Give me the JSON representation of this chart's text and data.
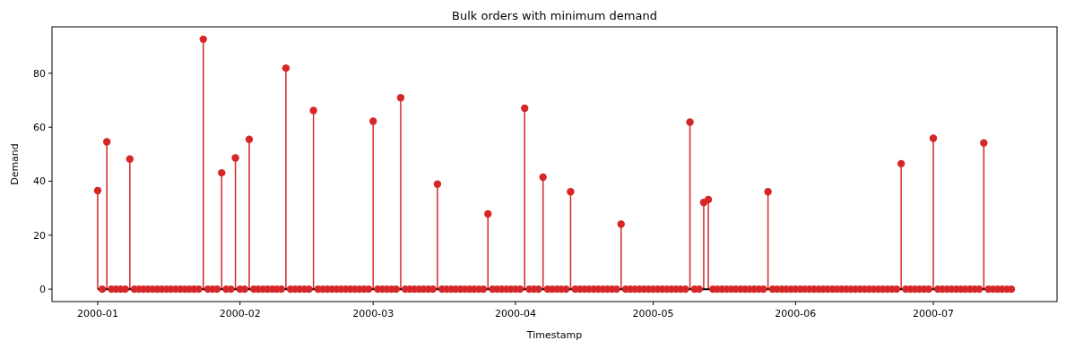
{
  "chart_data": {
    "type": "lollipop",
    "title": "Bulk orders with minimum demand",
    "xlabel": "Timestamp",
    "ylabel": "Demand",
    "x": [
      "2000-01-01",
      "2000-01-02",
      "2000-01-03",
      "2000-01-04",
      "2000-01-05",
      "2000-01-06",
      "2000-01-07",
      "2000-01-08",
      "2000-01-09",
      "2000-01-10",
      "2000-01-11",
      "2000-01-12",
      "2000-01-13",
      "2000-01-14",
      "2000-01-15",
      "2000-01-16",
      "2000-01-17",
      "2000-01-18",
      "2000-01-19",
      "2000-01-20",
      "2000-01-21",
      "2000-01-22",
      "2000-01-23",
      "2000-01-24",
      "2000-01-25",
      "2000-01-26",
      "2000-01-27",
      "2000-01-28",
      "2000-01-29",
      "2000-01-30",
      "2000-01-31",
      "2000-02-01",
      "2000-02-02",
      "2000-02-03",
      "2000-02-04",
      "2000-02-05",
      "2000-02-06",
      "2000-02-07",
      "2000-02-08",
      "2000-02-09",
      "2000-02-10",
      "2000-02-11",
      "2000-02-12",
      "2000-02-13",
      "2000-02-14",
      "2000-02-15",
      "2000-02-16",
      "2000-02-17",
      "2000-02-18",
      "2000-02-19",
      "2000-02-20",
      "2000-02-21",
      "2000-02-22",
      "2000-02-23",
      "2000-02-24",
      "2000-02-25",
      "2000-02-26",
      "2000-02-27",
      "2000-02-28",
      "2000-02-29",
      "2000-03-01",
      "2000-03-02",
      "2000-03-03",
      "2000-03-04",
      "2000-03-05",
      "2000-03-06",
      "2000-03-07",
      "2000-03-08",
      "2000-03-09",
      "2000-03-10",
      "2000-03-11",
      "2000-03-12",
      "2000-03-13",
      "2000-03-14",
      "2000-03-15",
      "2000-03-16",
      "2000-03-17",
      "2000-03-18",
      "2000-03-19",
      "2000-03-20",
      "2000-03-21",
      "2000-03-22",
      "2000-03-23",
      "2000-03-24",
      "2000-03-25",
      "2000-03-26",
      "2000-03-27",
      "2000-03-28",
      "2000-03-29",
      "2000-03-30",
      "2000-03-31",
      "2000-04-01",
      "2000-04-02",
      "2000-04-03",
      "2000-04-04",
      "2000-04-05",
      "2000-04-06",
      "2000-04-07",
      "2000-04-08",
      "2000-04-09",
      "2000-04-10",
      "2000-04-11",
      "2000-04-12",
      "2000-04-13",
      "2000-04-14",
      "2000-04-15",
      "2000-04-16",
      "2000-04-17",
      "2000-04-18",
      "2000-04-19",
      "2000-04-20",
      "2000-04-21",
      "2000-04-22",
      "2000-04-23",
      "2000-04-24",
      "2000-04-25",
      "2000-04-26",
      "2000-04-27",
      "2000-04-28",
      "2000-04-29",
      "2000-04-30",
      "2000-05-01",
      "2000-05-02",
      "2000-05-03",
      "2000-05-04",
      "2000-05-05",
      "2000-05-06",
      "2000-05-07",
      "2000-05-08",
      "2000-05-09",
      "2000-05-10",
      "2000-05-11",
      "2000-05-12",
      "2000-05-13",
      "2000-05-14",
      "2000-05-15",
      "2000-05-16",
      "2000-05-17",
      "2000-05-18",
      "2000-05-19",
      "2000-05-20",
      "2000-05-21",
      "2000-05-22",
      "2000-05-23",
      "2000-05-24",
      "2000-05-25",
      "2000-05-26",
      "2000-05-27",
      "2000-05-28",
      "2000-05-29",
      "2000-05-30",
      "2000-05-31",
      "2000-06-01",
      "2000-06-02",
      "2000-06-03",
      "2000-06-04",
      "2000-06-05",
      "2000-06-06",
      "2000-06-07",
      "2000-06-08",
      "2000-06-09",
      "2000-06-10",
      "2000-06-11",
      "2000-06-12",
      "2000-06-13",
      "2000-06-14",
      "2000-06-15",
      "2000-06-16",
      "2000-06-17",
      "2000-06-18",
      "2000-06-19",
      "2000-06-20",
      "2000-06-21",
      "2000-06-22",
      "2000-06-23",
      "2000-06-24",
      "2000-06-25",
      "2000-06-26",
      "2000-06-27",
      "2000-06-28",
      "2000-06-29",
      "2000-06-30",
      "2000-07-01",
      "2000-07-02",
      "2000-07-03",
      "2000-07-04",
      "2000-07-05",
      "2000-07-06",
      "2000-07-07",
      "2000-07-08",
      "2000-07-09",
      "2000-07-10",
      "2000-07-11",
      "2000-07-12",
      "2000-07-13",
      "2000-07-14",
      "2000-07-15",
      "2000-07-16",
      "2000-07-17",
      "2000-07-18"
    ],
    "series": [
      {
        "color": "#d62728",
        "values": [
          36.5,
          0,
          54.6,
          0,
          0,
          0,
          0,
          48.2,
          0,
          0,
          0,
          0,
          0,
          0,
          0,
          0,
          0,
          0,
          0,
          0,
          0,
          0,
          0,
          92.6,
          0,
          0,
          0,
          43.1,
          0,
          0,
          48.6,
          0,
          0,
          55.5,
          0,
          0,
          0,
          0,
          0,
          0,
          0,
          81.9,
          0,
          0,
          0,
          0,
          0,
          66.2,
          0,
          0,
          0,
          0,
          0,
          0,
          0,
          0,
          0,
          0,
          0,
          0,
          62.2,
          0,
          0,
          0,
          0,
          0,
          70.9,
          0,
          0,
          0,
          0,
          0,
          0,
          0,
          38.9,
          0,
          0,
          0,
          0,
          0,
          0,
          0,
          0,
          0,
          0,
          27.9,
          0,
          0,
          0,
          0,
          0,
          0,
          0,
          67,
          0,
          0,
          0,
          41.5,
          0,
          0,
          0,
          0,
          0,
          36.1,
          0,
          0,
          0,
          0,
          0,
          0,
          0,
          0,
          0,
          0,
          24.1,
          0,
          0,
          0,
          0,
          0,
          0,
          0,
          0,
          0,
          0,
          0,
          0,
          0,
          0,
          61.9,
          0,
          0,
          32.1,
          33.2,
          0,
          0,
          0,
          0,
          0,
          0,
          0,
          0,
          0,
          0,
          0,
          0,
          36.1,
          0,
          0,
          0,
          0,
          0,
          0,
          0,
          0,
          0,
          0,
          0,
          0,
          0,
          0,
          0,
          0,
          0,
          0,
          0,
          0,
          0,
          0,
          0,
          0,
          0,
          0,
          0,
          0,
          46.5,
          0,
          0,
          0,
          0,
          0,
          0,
          55.9,
          0,
          0,
          0,
          0,
          0,
          0,
          0,
          0,
          0,
          0,
          54.2,
          0,
          0,
          0,
          0,
          0,
          0
        ]
      }
    ],
    "xlim": [
      "1999-12-22T01:12",
      "2000-07-27T22:48"
    ],
    "xticks": [
      {
        "value": "2000-01-01",
        "label": "2000-01"
      },
      {
        "value": "2000-02-01",
        "label": "2000-02"
      },
      {
        "value": "2000-03-01",
        "label": "2000-03"
      },
      {
        "value": "2000-04-01",
        "label": "2000-04"
      },
      {
        "value": "2000-05-01",
        "label": "2000-05"
      },
      {
        "value": "2000-06-01",
        "label": "2000-06"
      },
      {
        "value": "2000-07-01",
        "label": "2000-07"
      }
    ],
    "ylim": [
      -4.6,
      97.2
    ],
    "yticks": [
      0,
      20,
      40,
      60,
      80
    ],
    "marker": "circle"
  }
}
